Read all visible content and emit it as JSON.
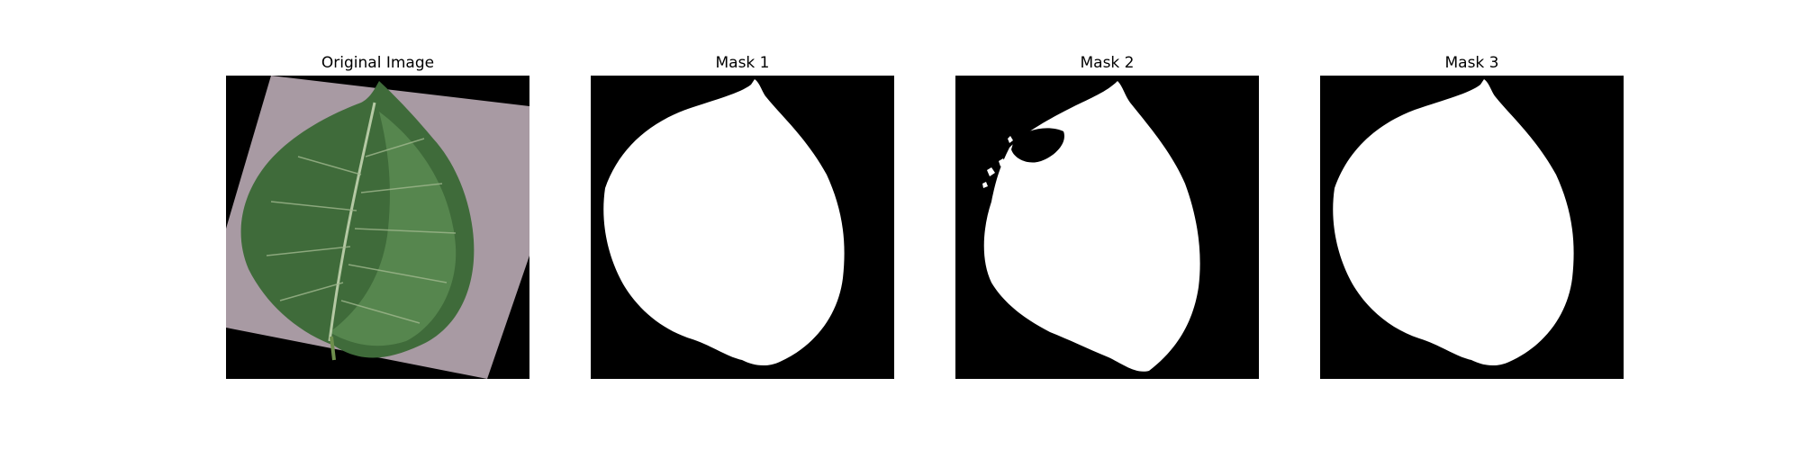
{
  "figure": {
    "panels": [
      {
        "title": "Original Image"
      },
      {
        "title": "Mask 1"
      },
      {
        "title": "Mask 2"
      },
      {
        "title": "Mask 3"
      }
    ]
  },
  "colors": {
    "mask_background": "#000000",
    "mask_foreground": "#ffffff",
    "paper": "#a89aa3",
    "leaf_dark": "#3f6b3a",
    "leaf_light": "#5f8f55",
    "vein": "#b5c9a4"
  }
}
